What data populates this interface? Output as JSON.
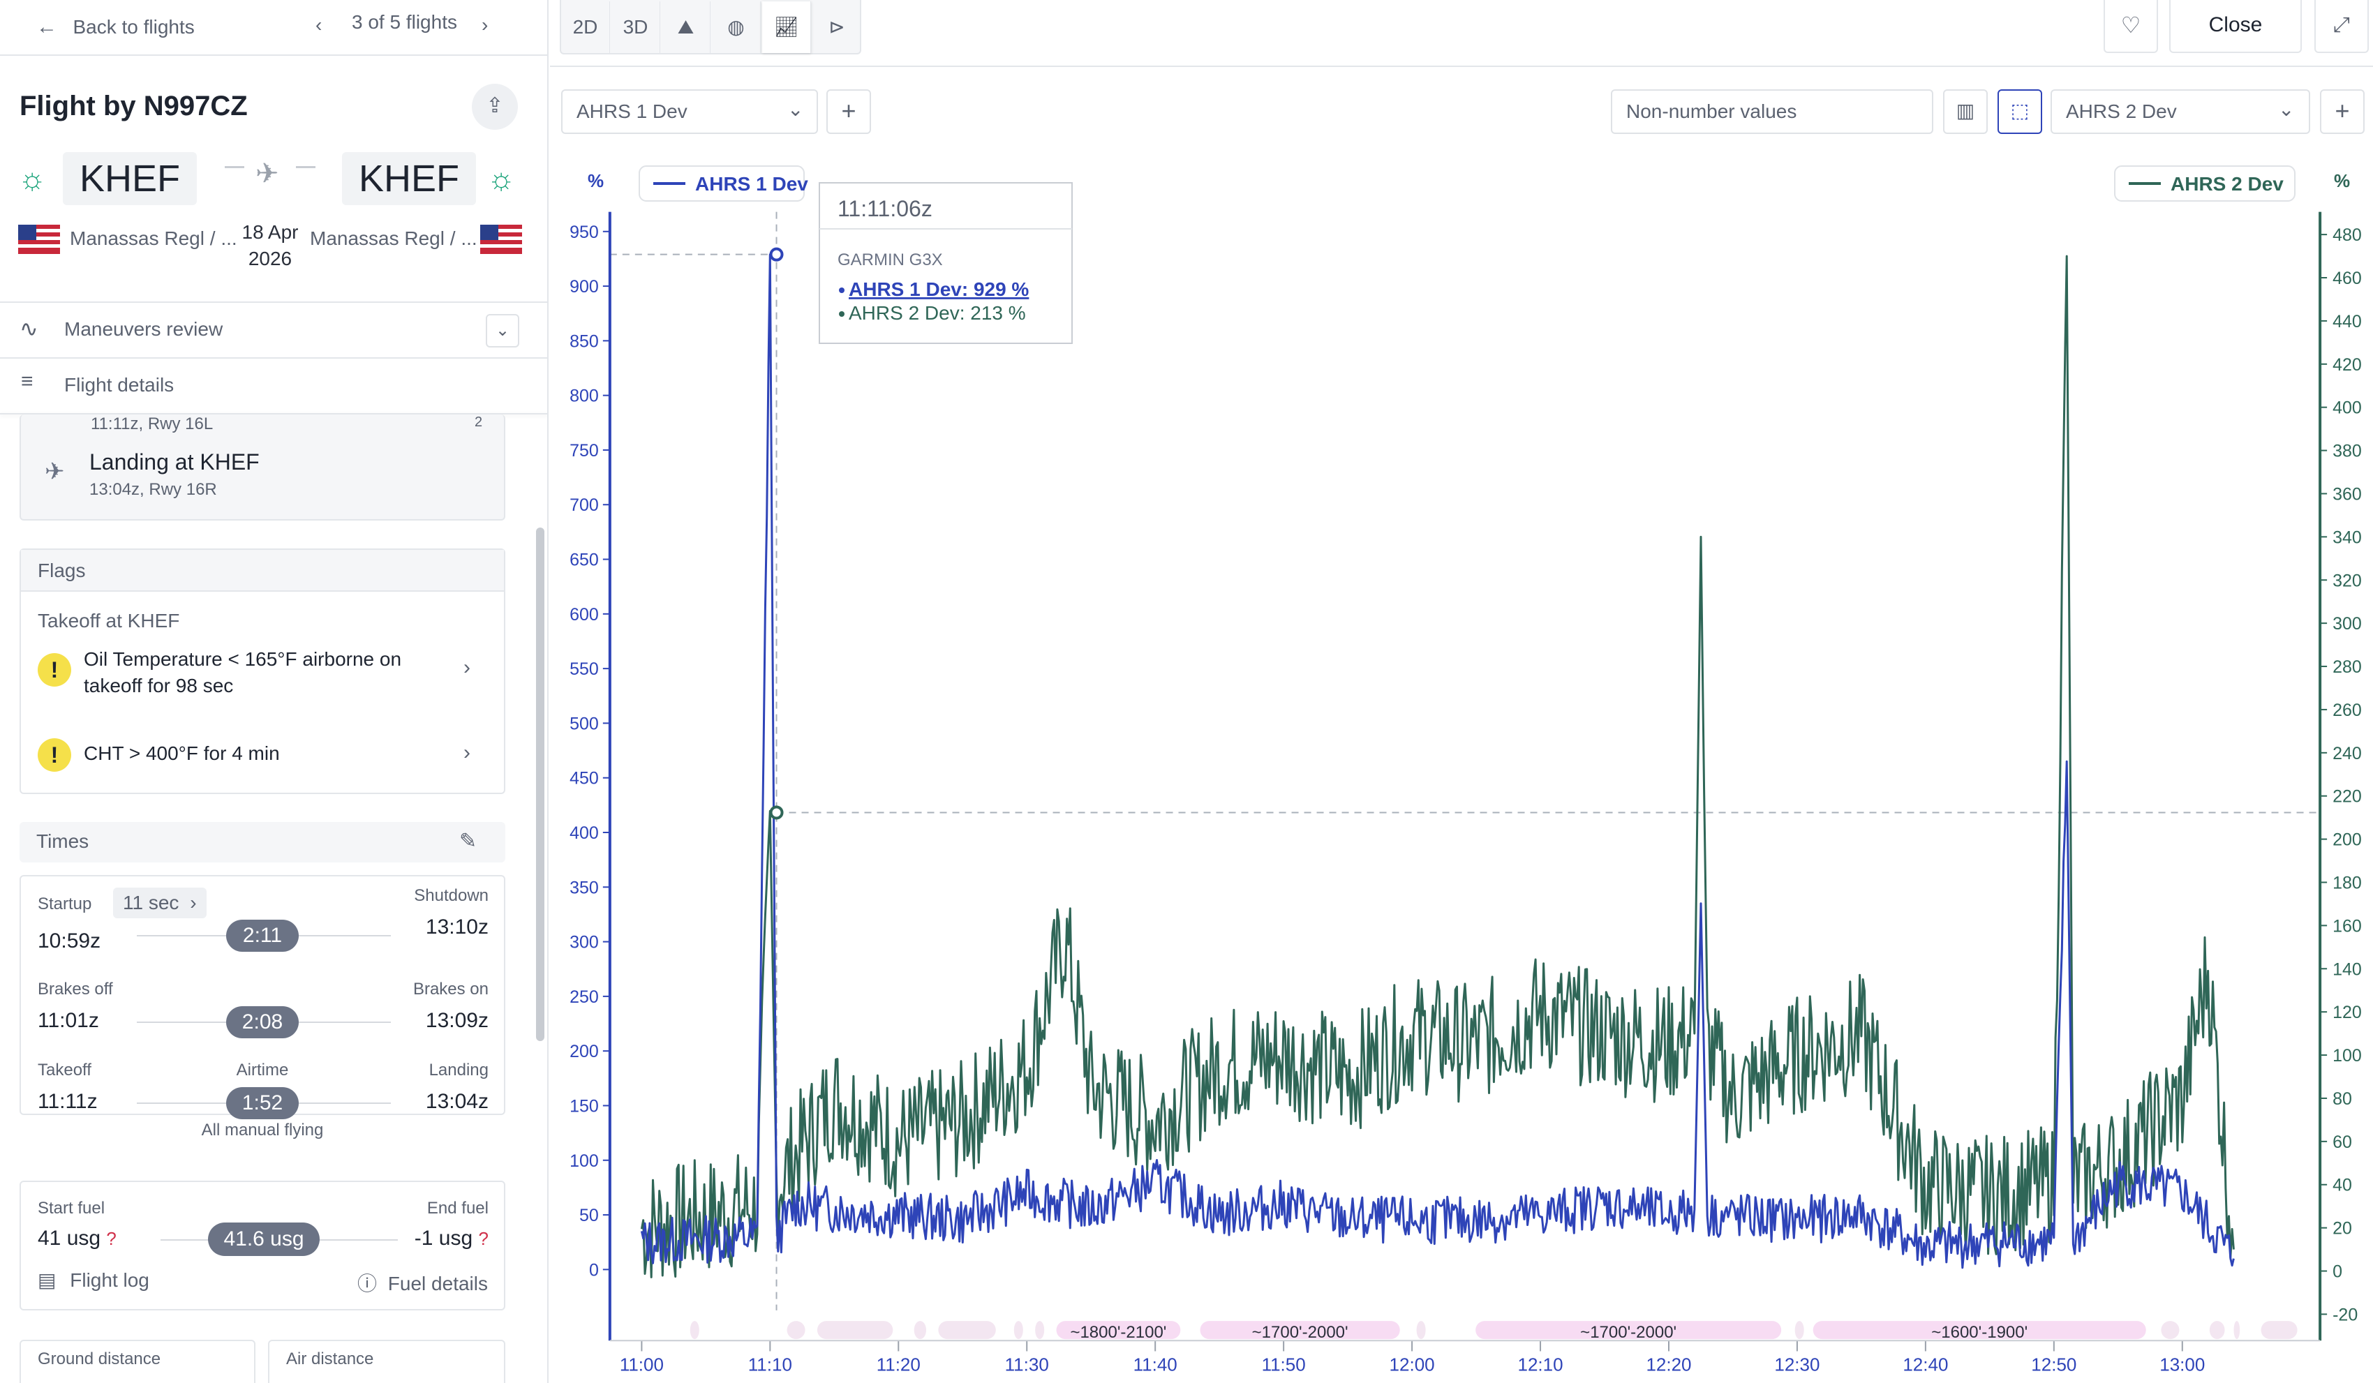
{
  "nav": {
    "back_label": "Back to flights",
    "pager": "3 of 5 flights"
  },
  "flight": {
    "title": "Flight by N997CZ",
    "from_code": "KHEF",
    "to_code": "KHEF",
    "from_name": "Manassas Regl / ...",
    "to_name": "Manassas Regl / ...",
    "date_line1": "18 Apr",
    "date_line2": "2026"
  },
  "sections": {
    "maneuvers": "Maneuvers review",
    "details": "Flight details"
  },
  "events": {
    "partial_time": "11:11z, Rwy 16L",
    "partial_badge": "2",
    "landing_title": "Landing at KHEF",
    "landing_sub": "13:04z, Rwy 16R"
  },
  "flags": {
    "header": "Flags",
    "group": "Takeoff at KHEF",
    "items": [
      {
        "line1": "Oil Temperature < 165°F airborne on",
        "line2": "takeoff for 98 sec"
      },
      {
        "line1": "CHT > 400°F for 4 min",
        "line2": ""
      }
    ]
  },
  "times": {
    "header": "Times",
    "startup_label": "Startup",
    "startup_chip": "11 sec",
    "startup_value": "10:59z",
    "shutdown_label": "Shutdown",
    "shutdown_value": "13:10z",
    "total1": "2:11",
    "brakesoff_label": "Brakes off",
    "brakesoff_value": "11:01z",
    "brakeson_label": "Brakes on",
    "brakeson_value": "13:09z",
    "total2": "2:08",
    "takeoff_label": "Takeoff",
    "takeoff_value": "11:11z",
    "airtime_label": "Airtime",
    "total3": "1:52",
    "landing_label": "Landing",
    "landing_value": "13:04z",
    "manual": "All manual flying"
  },
  "fuel": {
    "start_label": "Start fuel",
    "start_value": "41 usg",
    "q": "?",
    "end_label": "End fuel",
    "end_value": "-1 usg",
    "used": "41.6 usg",
    "log_link": "Flight log",
    "details_link": "Fuel details"
  },
  "distance": {
    "ground_label": "Ground distance",
    "air_label": "Air distance"
  },
  "toolbar": {
    "btn_2d": "2D",
    "btn_3d": "3D",
    "close": "Close",
    "left_select": "AHRS 1 Dev",
    "right_select": "AHRS 2 Dev",
    "nonnumber_placeholder": "Non-number values"
  },
  "colors": {
    "series1": "#2e44b8",
    "series2": "#2f6657",
    "accent": "#2e44b8"
  },
  "chart_data": {
    "type": "line",
    "left_unit": "%",
    "right_unit": "%",
    "legend_left": "AHRS 1 Dev",
    "legend_right": "AHRS 2 Dev",
    "y_left": {
      "min": 0,
      "max": 950,
      "ticks": [
        0,
        50,
        100,
        150,
        200,
        250,
        300,
        350,
        400,
        450,
        500,
        550,
        600,
        650,
        700,
        750,
        800,
        850,
        900,
        950
      ]
    },
    "y_right": {
      "min": -20,
      "max": 480,
      "ticks": [
        -20,
        0,
        20,
        40,
        60,
        80,
        100,
        120,
        140,
        160,
        180,
        200,
        220,
        240,
        260,
        280,
        300,
        320,
        340,
        360,
        380,
        400,
        420,
        440,
        460,
        480
      ]
    },
    "x_ticks": [
      "11:00",
      "11:10",
      "11:20",
      "11:30",
      "11:40",
      "11:50",
      "12:00",
      "12:10",
      "12:20",
      "12:30",
      "12:40",
      "12:50",
      "13:00"
    ],
    "altitude_bands": [
      "~1800'-2100'",
      "~1700'-2000'",
      "~1700'-2000'",
      "~1600'-1900'"
    ],
    "series": [
      {
        "name": "AHRS 1 Dev",
        "axis": "left",
        "points": [
          [
            0,
            25
          ],
          [
            5,
            28
          ],
          [
            9,
            30
          ],
          [
            10,
            929
          ],
          [
            10.5,
            30
          ],
          [
            12,
            60
          ],
          [
            15,
            55
          ],
          [
            20,
            50
          ],
          [
            25,
            45
          ],
          [
            30,
            70
          ],
          [
            35,
            55
          ],
          [
            40,
            80
          ],
          [
            45,
            50
          ],
          [
            50,
            60
          ],
          [
            55,
            45
          ],
          [
            60,
            45
          ],
          [
            65,
            45
          ],
          [
            70,
            50
          ],
          [
            75,
            60
          ],
          [
            80,
            50
          ],
          [
            82,
            55
          ],
          [
            82.5,
            335
          ],
          [
            83,
            50
          ],
          [
            90,
            45
          ],
          [
            95,
            50
          ],
          [
            100,
            20
          ],
          [
            105,
            25
          ],
          [
            110,
            25
          ],
          [
            111,
            465
          ],
          [
            111.5,
            25
          ],
          [
            115,
            80
          ],
          [
            120,
            70
          ],
          [
            124,
            10
          ]
        ]
      },
      {
        "name": "AHRS 2 Dev",
        "axis": "right",
        "points": [
          [
            0,
            20
          ],
          [
            5,
            25
          ],
          [
            9,
            30
          ],
          [
            10,
            213
          ],
          [
            10.5,
            40
          ],
          [
            15,
            80
          ],
          [
            20,
            60
          ],
          [
            25,
            70
          ],
          [
            30,
            95
          ],
          [
            33,
            155
          ],
          [
            35,
            85
          ],
          [
            40,
            70
          ],
          [
            45,
            95
          ],
          [
            50,
            100
          ],
          [
            55,
            90
          ],
          [
            60,
            110
          ],
          [
            65,
            105
          ],
          [
            70,
            120
          ],
          [
            75,
            110
          ],
          [
            80,
            105
          ],
          [
            82,
            110
          ],
          [
            82.5,
            340
          ],
          [
            83,
            105
          ],
          [
            85,
            80
          ],
          [
            90,
            100
          ],
          [
            95,
            110
          ],
          [
            100,
            40
          ],
          [
            105,
            35
          ],
          [
            110,
            40
          ],
          [
            111,
            470
          ],
          [
            111.5,
            40
          ],
          [
            115,
            50
          ],
          [
            120,
            80
          ],
          [
            122,
            140
          ],
          [
            124,
            10
          ]
        ]
      }
    ],
    "crosshair": {
      "time": "11:11:06z",
      "source": "GARMIN G3X",
      "line1": "AHRS 1 Dev: 929 %",
      "line2": "AHRS 2 Dev: 213 %"
    }
  }
}
